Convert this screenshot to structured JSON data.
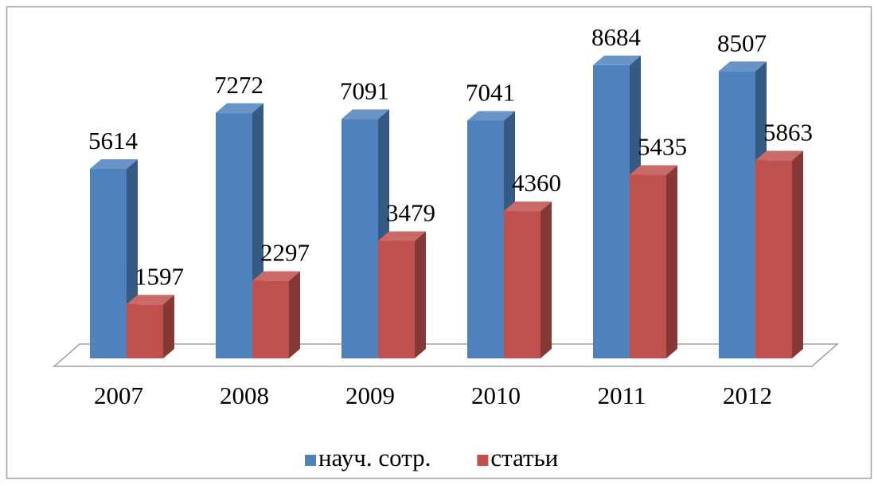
{
  "chart_data": {
    "type": "bar3d",
    "categories": [
      "2007",
      "2008",
      "2009",
      "2010",
      "2011",
      "2012"
    ],
    "series": [
      {
        "name": "науч. сотр.",
        "color": "#4f81bd",
        "values": [
          5614,
          7272,
          7091,
          7041,
          8684,
          8507
        ]
      },
      {
        "name": "статьи",
        "color": "#c0504d",
        "values": [
          1597,
          2297,
          3479,
          4360,
          5435,
          5863
        ]
      }
    ],
    "ylim": [
      0,
      10000
    ],
    "legend": "bottom"
  }
}
